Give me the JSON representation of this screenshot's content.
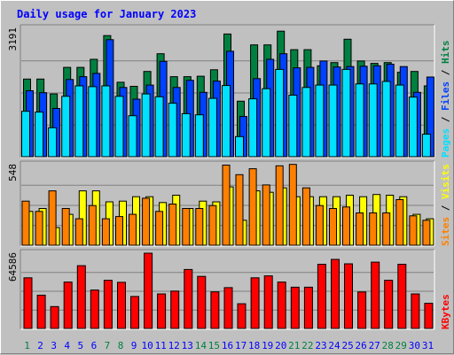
{
  "title": "Daily usage for January 2023",
  "colors": {
    "background": "#c0c0c0",
    "panel": "#c0c0c0",
    "title": "#0000ff",
    "grid": "#808080",
    "hits": "#008040",
    "files": "#0040ff",
    "pages": "#00e0ff",
    "visits": "#ffff00",
    "sites": "#ff8000",
    "kbytes": "#ff0000",
    "day_even": "#008040",
    "day_weekend": "#008040",
    "day_normal": "#0000ff"
  },
  "chart_data": {
    "type": "bar",
    "x": [
      1,
      2,
      3,
      4,
      5,
      6,
      7,
      8,
      9,
      10,
      11,
      12,
      13,
      14,
      15,
      16,
      17,
      18,
      19,
      20,
      21,
      22,
      23,
      24,
      25,
      26,
      27,
      28,
      29,
      30,
      31
    ],
    "x_tick_labels": [
      "1",
      "2",
      "3",
      "4",
      "5",
      "6",
      "7",
      "8",
      "9",
      "10",
      "11",
      "12",
      "13",
      "14",
      "15",
      "16",
      "17",
      "18",
      "19",
      "20",
      "21",
      "22",
      "23",
      "24",
      "25",
      "26",
      "27",
      "28",
      "29",
      "30",
      "31"
    ],
    "weekend_days": [
      1,
      7,
      8,
      14,
      15,
      21,
      22,
      28,
      29
    ],
    "panels": [
      {
        "name": "hits-files-pages",
        "ymax_label": "3191",
        "ymax": 3191,
        "legend": [
          "Pages",
          "/",
          "Files",
          "/",
          "Hits"
        ],
        "series": [
          {
            "name": "Hits",
            "values": [
              1930,
              1930,
              1560,
              2220,
              2220,
              2420,
              3010,
              1850,
              1750,
              2120,
              2560,
              1990,
              1990,
              2000,
              2160,
              3051,
              1380,
              2780,
              2780,
              3120,
              2660,
              2660,
              2260,
              2340,
              2920,
              2380,
              2320,
              2340,
              2100,
              2120,
              1760
            ]
          },
          {
            "name": "Files",
            "values": [
              1640,
              1590,
              1200,
              1920,
              1990,
              2070,
              2910,
              1720,
              1430,
              1780,
              2370,
              1720,
              1900,
              1600,
              1880,
              2620,
              1000,
              1940,
              2420,
              2560,
              2210,
              2220,
              2380,
              2230,
              2240,
              2250,
              2260,
              2300,
              2240,
              1600,
              1980
            ]
          },
          {
            "name": "Pages",
            "values": [
              1130,
              1110,
              720,
              1500,
              1760,
              1740,
              1760,
              1500,
              1020,
              1560,
              1490,
              1330,
              1070,
              1040,
              1450,
              1770,
              500,
              1440,
              1690,
              2170,
              1530,
              1720,
              1780,
              1780,
              2170,
              1810,
              1810,
              1870,
              1780,
              1480,
              560
            ]
          }
        ]
      },
      {
        "name": "visits-sites",
        "ymax_label": "548",
        "ymax": 548,
        "legend": [
          "Sites",
          "/",
          "Visits"
        ],
        "series": [
          {
            "name": "Visits",
            "values": [
              230,
              250,
              120,
              210,
              370,
              370,
              295,
              300,
              330,
              330,
              290,
              340,
              250,
              300,
              295,
              397,
              170,
              370,
              360,
              390,
              330,
              330,
              330,
              330,
              340,
              330,
              345,
              340,
              330,
              210,
              180
            ]
          },
          {
            "name": "Sites",
            "values": [
              300,
              230,
              370,
              250,
              180,
              270,
              180,
              195,
              210,
              320,
              230,
              280,
              250,
              250,
              270,
              545,
              480,
              520,
              410,
              540,
              550,
              390,
              270,
              250,
              260,
              220,
              220,
              220,
              310,
              200,
              170
            ]
          }
        ]
      },
      {
        "name": "kbytes",
        "ymax_label": "64586",
        "ymax": 64586,
        "legend": [
          "KBytes"
        ],
        "series": [
          {
            "name": "KBytes",
            "values": [
              43500,
              28600,
              18800,
              39800,
              53900,
              33000,
              41300,
              39600,
              27400,
              64560,
              29600,
              32100,
              50600,
              44700,
              31400,
              35000,
              21200,
              43500,
              45100,
              39800,
              35400,
              35400,
              55100,
              59300,
              55500,
              31300,
              56900,
              41300,
              55100,
              29600,
              21600
            ]
          }
        ]
      }
    ]
  }
}
